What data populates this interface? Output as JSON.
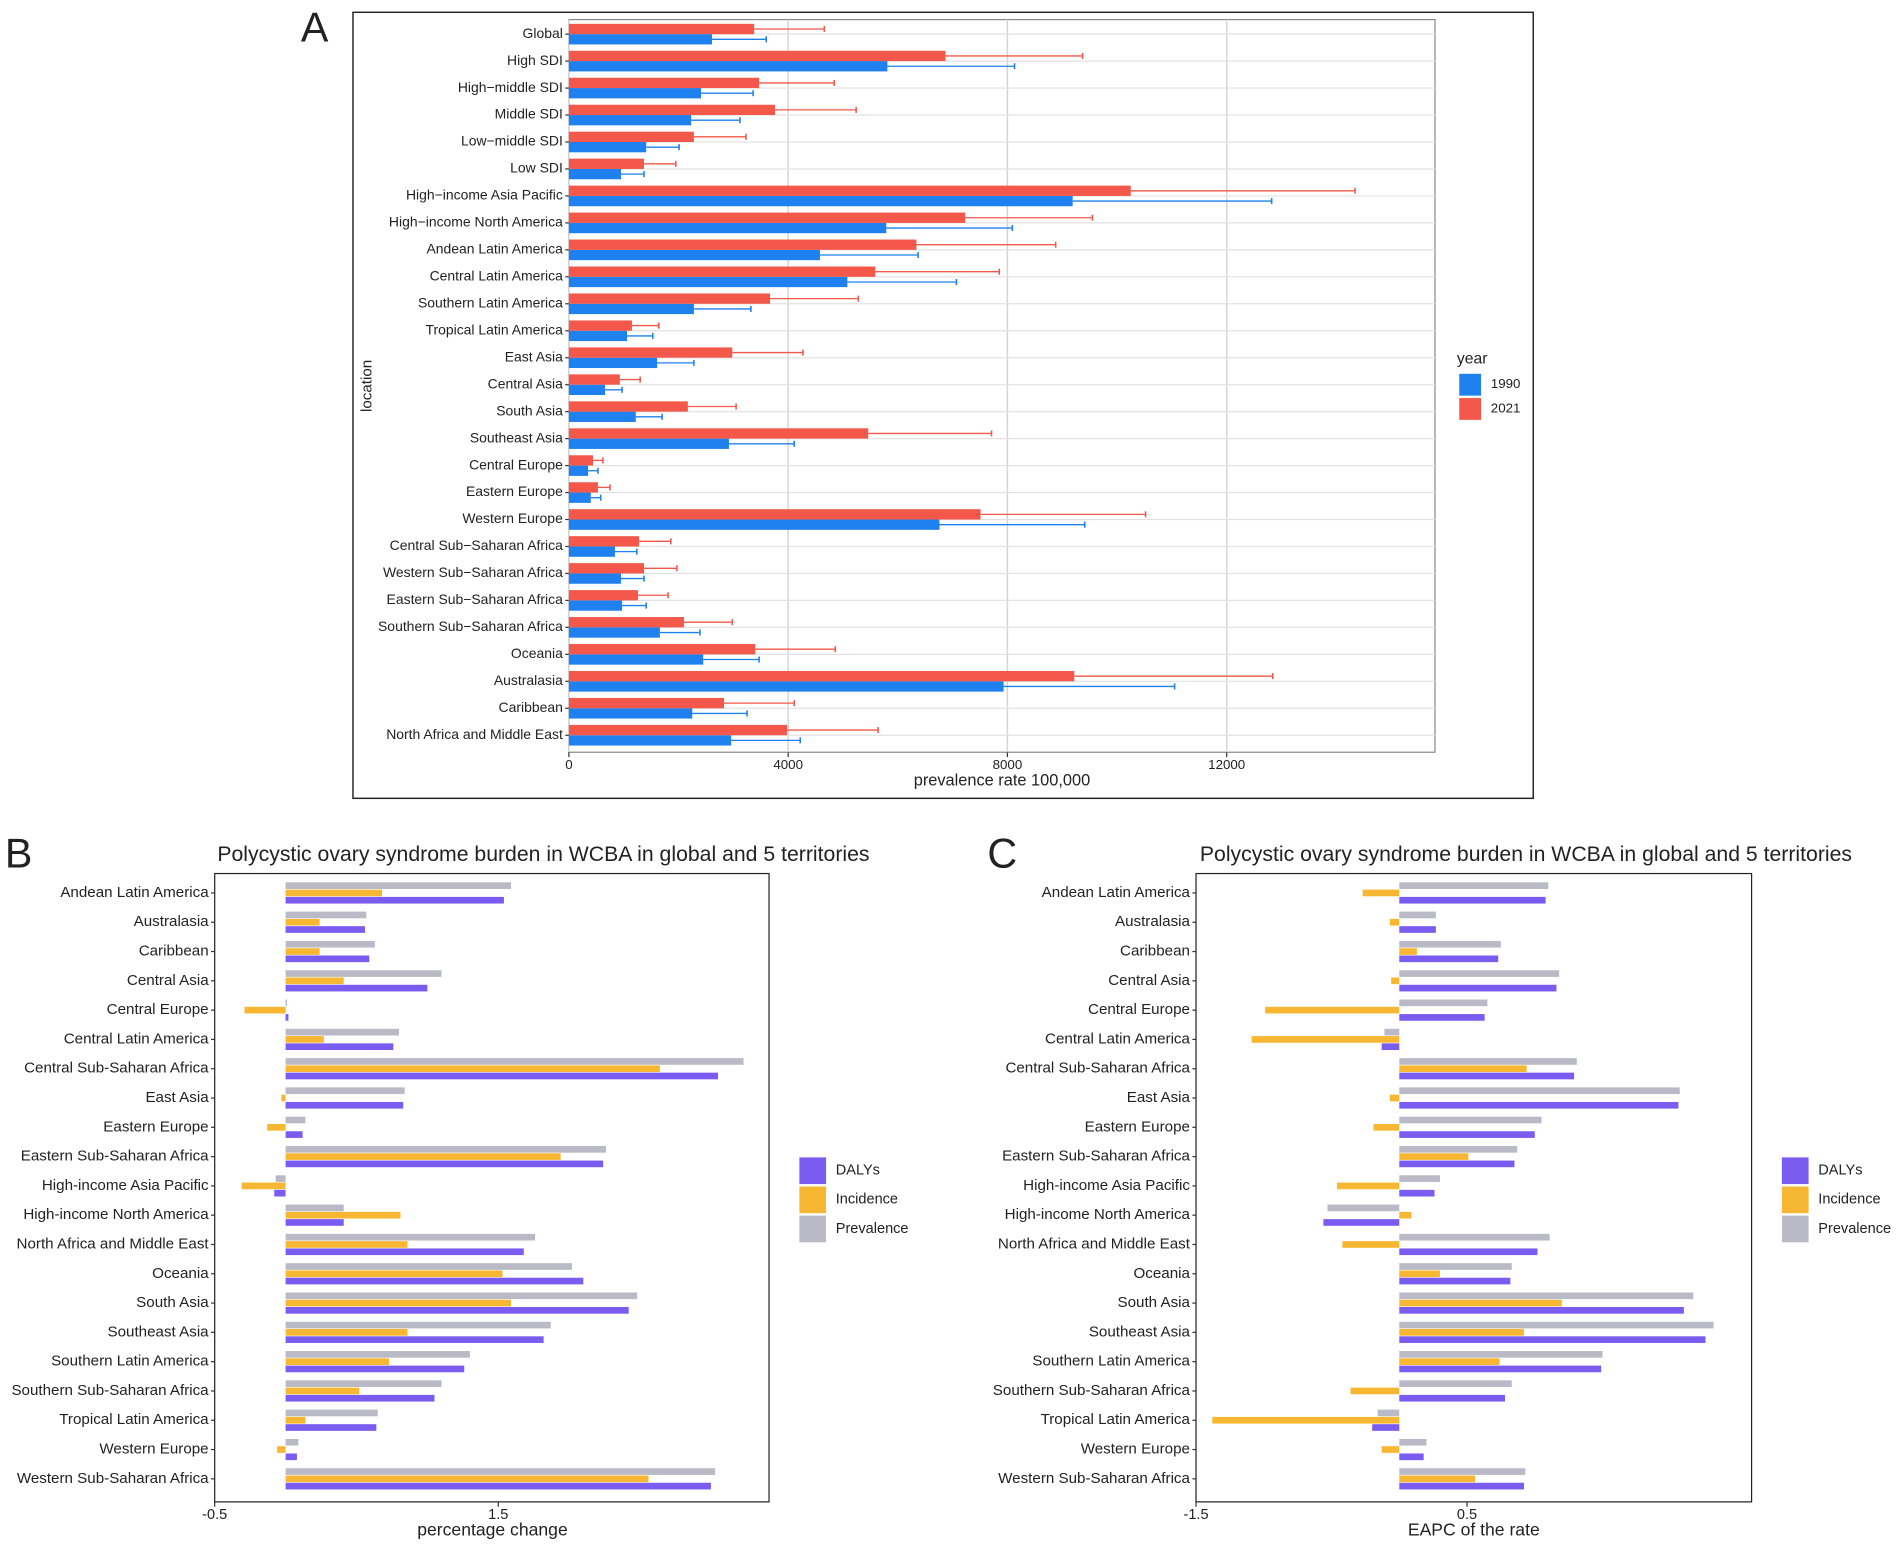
{
  "chart_data": [
    {
      "type": "bar",
      "panel": "A",
      "orientation": "horizontal",
      "xlabel": "prevalence rate 100,000",
      "ylabel": "location",
      "legend_title": "year",
      "categories": [
        "Global",
        "High SDI",
        "High−middle SDI",
        "Middle SDI",
        "Low−middle SDI",
        "Low SDI",
        "High−income Asia Pacific",
        "High−income North America",
        "Andean Latin America",
        "Central Latin America",
        "Southern Latin America",
        "Tropical Latin America",
        "East Asia",
        "Central Asia",
        "South Asia",
        "Southeast Asia",
        "Central Europe",
        "Eastern Europe",
        "Western Europe",
        "Central Sub−Saharan Africa",
        "Western Sub−Saharan Africa",
        "Eastern Sub−Saharan Africa",
        "Southern Sub−Saharan Africa",
        "Oceania",
        "Australasia",
        "Caribbean",
        "North Africa and Middle East"
      ],
      "series": [
        {
          "name": "1990",
          "color": "#1f80f0",
          "values": [
            2610,
            5810,
            2410,
            2230,
            1410,
            950,
            9190,
            5790,
            4580,
            5080,
            2280,
            1060,
            1610,
            660,
            1220,
            2920,
            350,
            400,
            6760,
            840,
            950,
            970,
            1660,
            2450,
            7930,
            2250,
            2960
          ],
          "upper": [
            3600,
            8130,
            3360,
            3120,
            2010,
            1370,
            12820,
            8090,
            6370,
            7070,
            3320,
            1530,
            2280,
            970,
            1700,
            4110,
            530,
            580,
            9410,
            1240,
            1370,
            1410,
            2390,
            3470,
            11050,
            3250,
            4220
          ]
        },
        {
          "name": "2021",
          "color": "#f4584a",
          "values": [
            3380,
            6870,
            3470,
            3760,
            2280,
            1370,
            10250,
            7230,
            6340,
            5590,
            3670,
            1150,
            2980,
            930,
            2170,
            5460,
            440,
            530,
            7510,
            1280,
            1370,
            1260,
            2100,
            3400,
            9220,
            2830,
            3980
          ],
          "upper": [
            4660,
            9370,
            4840,
            5240,
            3230,
            1950,
            14340,
            9550,
            8880,
            7850,
            5280,
            1640,
            4270,
            1300,
            3050,
            7710,
            620,
            750,
            10520,
            1860,
            1970,
            1810,
            2980,
            4860,
            12840,
            4110,
            5640
          ]
        }
      ],
      "xlim": [
        0,
        15800
      ],
      "xticks": [
        0,
        4000,
        8000,
        12000
      ],
      "grid": true
    },
    {
      "type": "bar",
      "panel": "B",
      "orientation": "horizontal",
      "title": "Polycystic ovary syndrome burden in WCBA in global and 5 territories",
      "xlabel": "percentage change",
      "categories": [
        "Andean Latin America",
        "Australasia",
        "Caribbean",
        "Central Asia",
        "Central Europe",
        "Central Latin America",
        "Central Sub-Saharan Africa",
        "East Asia",
        "Eastern Europe",
        "Eastern Sub-Saharan Africa",
        "High-income Asia Pacific",
        "High-income North America",
        "North Africa and Middle East",
        "Oceania",
        "South Asia",
        "Southeast Asia",
        "Southern Latin America",
        "Southern Sub-Saharan Africa",
        "Tropical Latin America",
        "Western Europe",
        "Western Sub-Saharan Africa"
      ],
      "series": [
        {
          "name": "DALYs",
          "color": "#7b5cf0",
          "values": [
            1.54,
            0.56,
            0.59,
            1.0,
            0.02,
            0.76,
            3.05,
            0.83,
            0.12,
            2.24,
            -0.08,
            0.41,
            1.68,
            2.1,
            2.42,
            1.82,
            1.26,
            1.05,
            0.64,
            0.08,
            3.0
          ]
        },
        {
          "name": "Incidence",
          "color": "#f7b733",
          "values": [
            0.68,
            0.24,
            0.24,
            0.41,
            -0.29,
            0.27,
            2.64,
            -0.03,
            -0.13,
            1.94,
            -0.31,
            0.81,
            0.86,
            1.53,
            1.59,
            0.86,
            0.73,
            0.52,
            0.14,
            -0.06,
            2.56
          ]
        },
        {
          "name": "Prevalence",
          "color": "#b9bac5",
          "values": [
            1.59,
            0.57,
            0.63,
            1.1,
            0.01,
            0.8,
            3.23,
            0.84,
            0.14,
            2.26,
            -0.07,
            0.41,
            1.76,
            2.02,
            2.48,
            1.87,
            1.3,
            1.1,
            0.65,
            0.09,
            3.03
          ]
        }
      ],
      "xlim": [
        -0.5,
        3.41
      ],
      "xticks": [
        -0.5,
        1.5
      ],
      "grid": false
    },
    {
      "type": "bar",
      "panel": "C",
      "orientation": "horizontal",
      "title": "Polycystic ovary syndrome burden in WCBA in global and 5 territories",
      "xlabel": "EAPC of the rate",
      "categories": [
        "Andean Latin America",
        "Australasia",
        "Caribbean",
        "Central Asia",
        "Central Europe",
        "Central Latin America",
        "Central Sub-Saharan Africa",
        "East Asia",
        "Eastern Europe",
        "Eastern Sub-Saharan Africa",
        "High-income Asia Pacific",
        "High-income North America",
        "North Africa and Middle East",
        "Oceania",
        "South Asia",
        "Southeast Asia",
        "Southern Latin America",
        "Southern Sub-Saharan Africa",
        "Tropical Latin America",
        "Western Europe",
        "Western Sub-Saharan Africa"
      ],
      "series": [
        {
          "name": "DALYs",
          "color": "#7b5cf0",
          "values": [
            1.08,
            0.27,
            0.73,
            1.16,
            0.63,
            -0.13,
            1.29,
            2.06,
            1.0,
            0.85,
            0.26,
            -0.56,
            1.02,
            0.82,
            2.1,
            2.26,
            1.49,
            0.78,
            -0.2,
            0.18,
            0.92
          ]
        },
        {
          "name": "Incidence",
          "color": "#f7b733",
          "values": [
            -0.27,
            -0.07,
            0.13,
            -0.06,
            -0.99,
            -1.09,
            0.94,
            -0.07,
            -0.19,
            0.51,
            -0.46,
            0.09,
            -0.42,
            0.3,
            1.2,
            0.92,
            0.74,
            -0.36,
            -1.38,
            -0.13,
            0.56
          ]
        },
        {
          "name": "Prevalence",
          "color": "#b9bac5",
          "values": [
            1.1,
            0.27,
            0.75,
            1.18,
            0.65,
            -0.11,
            1.31,
            2.07,
            1.05,
            0.87,
            0.3,
            -0.53,
            1.11,
            0.83,
            2.17,
            2.32,
            1.5,
            0.83,
            -0.16,
            0.2,
            0.93
          ]
        }
      ],
      "xlim": [
        -1.5,
        2.6
      ],
      "xticks": [
        -1.5,
        0.5
      ],
      "grid": false
    }
  ]
}
